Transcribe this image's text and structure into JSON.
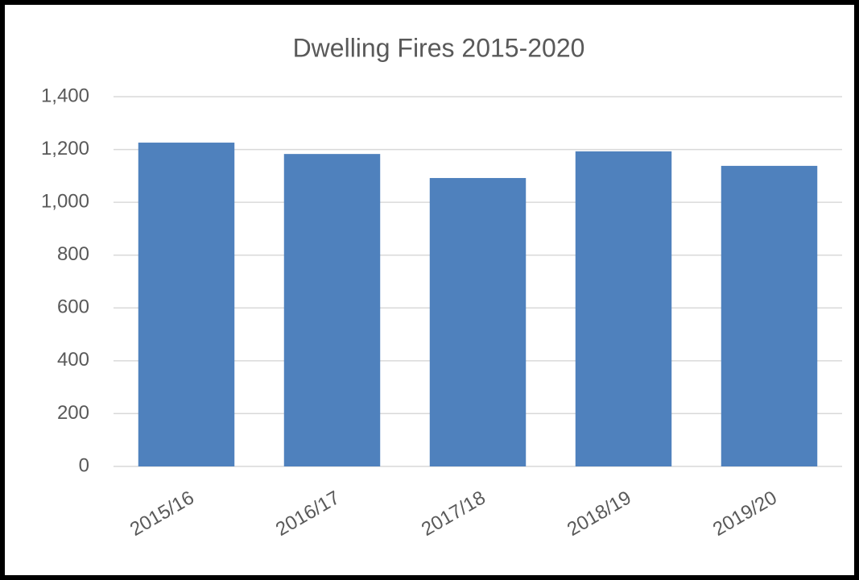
{
  "chart_data": {
    "type": "bar",
    "title": "Dwelling Fires 2015-2020",
    "categories": [
      "2015/16",
      "2016/17",
      "2017/18",
      "2018/19",
      "2019/20"
    ],
    "values": [
      1226,
      1183,
      1092,
      1193,
      1138
    ],
    "color": "#4f81bd",
    "ylim": [
      0,
      1400
    ],
    "yticks": [
      0,
      200,
      400,
      600,
      800,
      {
        "value": 1000,
        "label": "1,000"
      },
      {
        "value": 1200,
        "label": "1,200"
      },
      {
        "value": 1400,
        "label": "1,400"
      }
    ],
    "grid": true
  }
}
